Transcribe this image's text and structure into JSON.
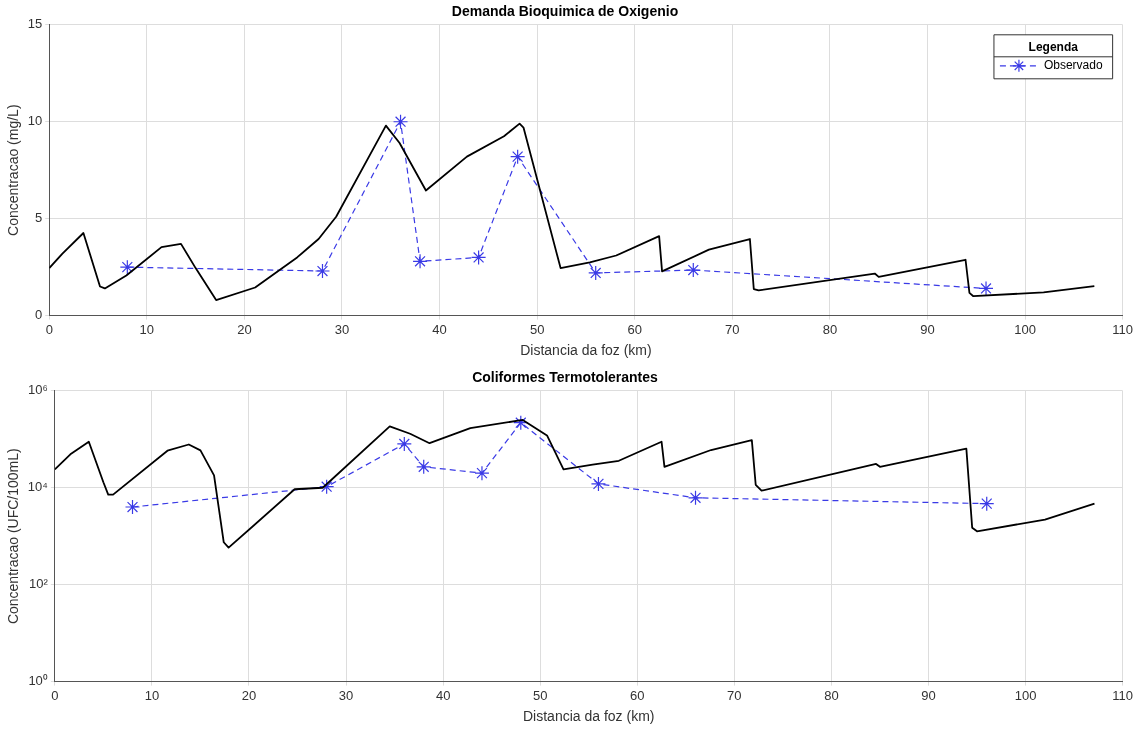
{
  "chart_data": [
    {
      "type": "line",
      "title": "Demanda Bioquimica de Oxigenio",
      "xlabel": "Distancia da foz (km)",
      "ylabel": "Concentracao (mg/L)",
      "legend_title": "Legenda",
      "legend": "top right",
      "grid": true,
      "xlim": [
        0,
        110
      ],
      "xticks": [
        0,
        10,
        20,
        30,
        40,
        50,
        60,
        70,
        80,
        90,
        100,
        110
      ],
      "ylim": [
        0,
        15
      ],
      "yticks": [
        0,
        5,
        10,
        15
      ],
      "series": [
        {
          "color": "#000000",
          "marker": "none",
          "line_style": "solid",
          "x": [
            0,
            1.35,
            3.5,
            5.2,
            5.7,
            7.9,
            11.5,
            13.5,
            15,
            17.1,
            21.1,
            25.4,
            27.6,
            29.4,
            34.5,
            35.9,
            38.6,
            42.8,
            46.6,
            48.2,
            48.6,
            52.4,
            55.4,
            58.1,
            62.5,
            62.8,
            67.6,
            71.8,
            72.2,
            72.7,
            84.6,
            85,
            93.9,
            94.3,
            94.7,
            101.9,
            107.1
          ],
          "values": [
            2.45,
            3.2,
            4.26,
            1.5,
            1.4,
            2.07,
            3.53,
            3.7,
            2.45,
            0.8,
            1.45,
            3.0,
            3.95,
            5.1,
            9.8,
            8.9,
            6.45,
            8.2,
            9.25,
            9.9,
            9.7,
            2.45,
            2.74,
            3.1,
            4.1,
            2.28,
            3.4,
            3.95,
            1.37,
            1.3,
            2.17,
            2.0,
            2.88,
            1.17,
            1.0,
            1.2,
            1.52
          ]
        },
        {
          "name": "Observado",
          "color": "#3a3ae6",
          "marker": "cross",
          "line_style": "dashed",
          "x": [
            8,
            28,
            36,
            38,
            44,
            48,
            56,
            66,
            96
          ],
          "values": [
            2.5,
            2.3,
            10,
            2.8,
            3.0,
            8.2,
            2.2,
            2.35,
            1.4
          ]
        }
      ]
    },
    {
      "type": "line",
      "title": "Coliformes Termotolerantes",
      "xlabel": "Distancia da foz (km)",
      "ylabel": "Concentracao (UFC/100mL)",
      "log": "y",
      "grid": true,
      "xlim": [
        0,
        110
      ],
      "xticks": [
        0,
        10,
        20,
        30,
        40,
        50,
        60,
        70,
        80,
        90,
        100,
        110
      ],
      "ylim": [
        1,
        1000000
      ],
      "yticks": [
        {
          "value": 1,
          "label": "10⁰"
        },
        {
          "value": 100,
          "label": "10²"
        },
        {
          "value": 10000,
          "label": "10⁴"
        },
        {
          "value": 1000000,
          "label": "10⁶"
        }
      ],
      "series": [
        {
          "color": "#000000",
          "marker": "none",
          "line_style": "solid",
          "x": [
            0,
            1.6,
            3.5,
            5.0,
            5.5,
            6.0,
            11.6,
            13.8,
            15,
            16.4,
            17.4,
            17.9,
            24.7,
            27.6,
            34.5,
            36.6,
            38.6,
            42.8,
            48.2,
            50.7,
            52.4,
            55.4,
            58.1,
            62.5,
            62.8,
            67.6,
            71.8,
            72.2,
            72.8,
            84.6,
            85,
            93.9,
            94.5,
            95,
            102,
            107.1
          ],
          "values": [
            24000,
            49000,
            89000,
            13000,
            7200,
            7200,
            58000,
            78000,
            59000,
            18000,
            750,
            580,
            9300,
            10000,
            185000,
            130000,
            83000,
            170000,
            250000,
            120000,
            24000,
            30000,
            36000,
            89000,
            27000,
            60000,
            96000,
            11500,
            8700,
            31000,
            27000,
            64000,
            1500,
            1260,
            2200,
            4700
          ]
        },
        {
          "color": "#3a3ae6",
          "marker": "cross",
          "line_style": "dashed",
          "x": [
            8,
            28,
            36,
            38,
            44,
            48,
            56,
            66,
            96
          ],
          "values": [
            4000,
            10500,
            80000,
            27000,
            20000,
            220000,
            12000,
            6200,
            4700
          ]
        }
      ]
    }
  ]
}
